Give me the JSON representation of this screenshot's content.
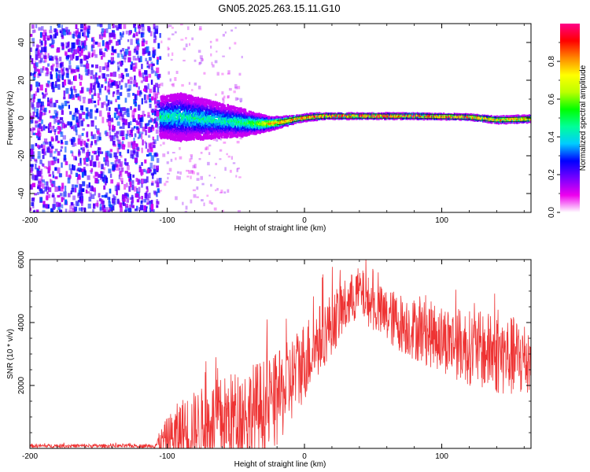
{
  "title": "GN05.2025.263.15.11.G10",
  "chart_data": [
    {
      "type": "heatmap",
      "title": "GN05.2025.263.15.11.G10",
      "xlabel": "Height of straight line (km)",
      "ylabel": "Frequency (Hz)",
      "xlim": [
        -200,
        165
      ],
      "ylim": [
        -50,
        50
      ],
      "x_ticks": [
        -200,
        -100,
        0,
        100
      ],
      "y_ticks": [
        -40,
        -20,
        0,
        20,
        40
      ],
      "colorbar": {
        "label": "Normalized spectral amplitude",
        "range": [
          0,
          1
        ],
        "ticks": [
          0.0,
          0.2,
          0.4,
          0.6,
          0.8
        ],
        "colormap": [
          "#ffffff",
          "#ee00ee",
          "#7700ff",
          "#0000ff",
          "#00ccff",
          "#00ff99",
          "#00ff00",
          "#bbff00",
          "#ffff00",
          "#ff8800",
          "#ff0000",
          "#ff0088"
        ]
      },
      "noise_region_x": [
        -200,
        -105
      ],
      "signal_track": {
        "x": [
          -105,
          -90,
          -75,
          -60,
          -45,
          -35,
          -25,
          -15,
          -5,
          5,
          15,
          40,
          80,
          120,
          140,
          165
        ],
        "center_freq": [
          0.5,
          0.5,
          -0.5,
          -1.5,
          -2.5,
          -3.0,
          -3.0,
          -2.0,
          -0.5,
          0.5,
          1.0,
          1.0,
          1.0,
          0.5,
          -1.0,
          -0.5
        ],
        "spread": [
          6,
          7,
          6,
          5,
          4,
          3,
          2,
          1.5,
          1,
          1,
          0.8,
          0.8,
          0.8,
          0.8,
          1.0,
          1.0
        ],
        "peak_amp": [
          0.45,
          0.45,
          0.45,
          0.45,
          0.5,
          0.6,
          0.8,
          0.9,
          0.95,
          0.95,
          1.0,
          1.0,
          1.0,
          0.95,
          0.9,
          0.85
        ]
      }
    },
    {
      "type": "line",
      "xlabel": "Height of straight line (km)",
      "ylabel": "SNR (10 * v/v)",
      "xlim": [
        -200,
        165
      ],
      "ylim": [
        0,
        6000
      ],
      "x_ticks": [
        -200,
        -100,
        0,
        100
      ],
      "y_ticks": [
        2000,
        4000,
        6000
      ],
      "color": "#ee3333",
      "series": [
        {
          "name": "SNR",
          "x": [
            -200,
            -150,
            -110,
            -100,
            -90,
            -60,
            -40,
            -20,
            0,
            20,
            40,
            50,
            60,
            80,
            100,
            120,
            140,
            165
          ],
          "mean": [
            80,
            80,
            80,
            300,
            500,
            900,
            1100,
            1500,
            2800,
            4000,
            5000,
            4500,
            4200,
            3800,
            3500,
            3200,
            3000,
            2800
          ],
          "amp": [
            60,
            60,
            60,
            700,
            1100,
            1400,
            1600,
            1500,
            1300,
            1000,
            800,
            800,
            900,
            1000,
            1100,
            1200,
            1300,
            1300
          ]
        }
      ]
    }
  ]
}
